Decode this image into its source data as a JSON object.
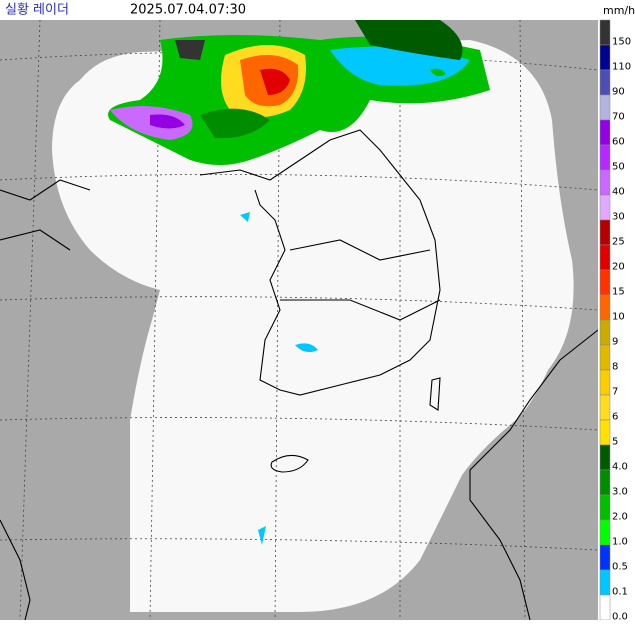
{
  "header": {
    "title": "실황 레이더",
    "time": "2025.07.04.07:30"
  },
  "legend": {
    "unit": "mm/h",
    "items": [
      {
        "label": "150",
        "color": "#333333"
      },
      {
        "label": "110",
        "color": "#000390"
      },
      {
        "label": "90",
        "color": "#4c4eb1"
      },
      {
        "label": "70",
        "color": "#b3b4de"
      },
      {
        "label": "60",
        "color": "#9300e4"
      },
      {
        "label": "50",
        "color": "#b329ff"
      },
      {
        "label": "40",
        "color": "#c969ff"
      },
      {
        "label": "30",
        "color": "#e0a9ff"
      },
      {
        "label": "25",
        "color": "#b40000"
      },
      {
        "label": "20",
        "color": "#e00000"
      },
      {
        "label": "15",
        "color": "#ff3200"
      },
      {
        "label": "10",
        "color": "#ff6600"
      },
      {
        "label": "9",
        "color": "#ccaa00"
      },
      {
        "label": "8",
        "color": "#e0b900"
      },
      {
        "label": "7",
        "color": "#f9cd00"
      },
      {
        "label": "6",
        "color": "#ffdc1f"
      },
      {
        "label": "5",
        "color": "#ffe100"
      },
      {
        "label": "4.0",
        "color": "#005a00"
      },
      {
        "label": "3.0",
        "color": "#008c00"
      },
      {
        "label": "2.0",
        "color": "#00be00"
      },
      {
        "label": "1.0",
        "color": "#00ff00"
      },
      {
        "label": "0.5",
        "color": "#0033f5"
      },
      {
        "label": "0.1",
        "color": "#00c8ff"
      },
      {
        "label": "0.0",
        "color": "#ffffff"
      }
    ]
  }
}
